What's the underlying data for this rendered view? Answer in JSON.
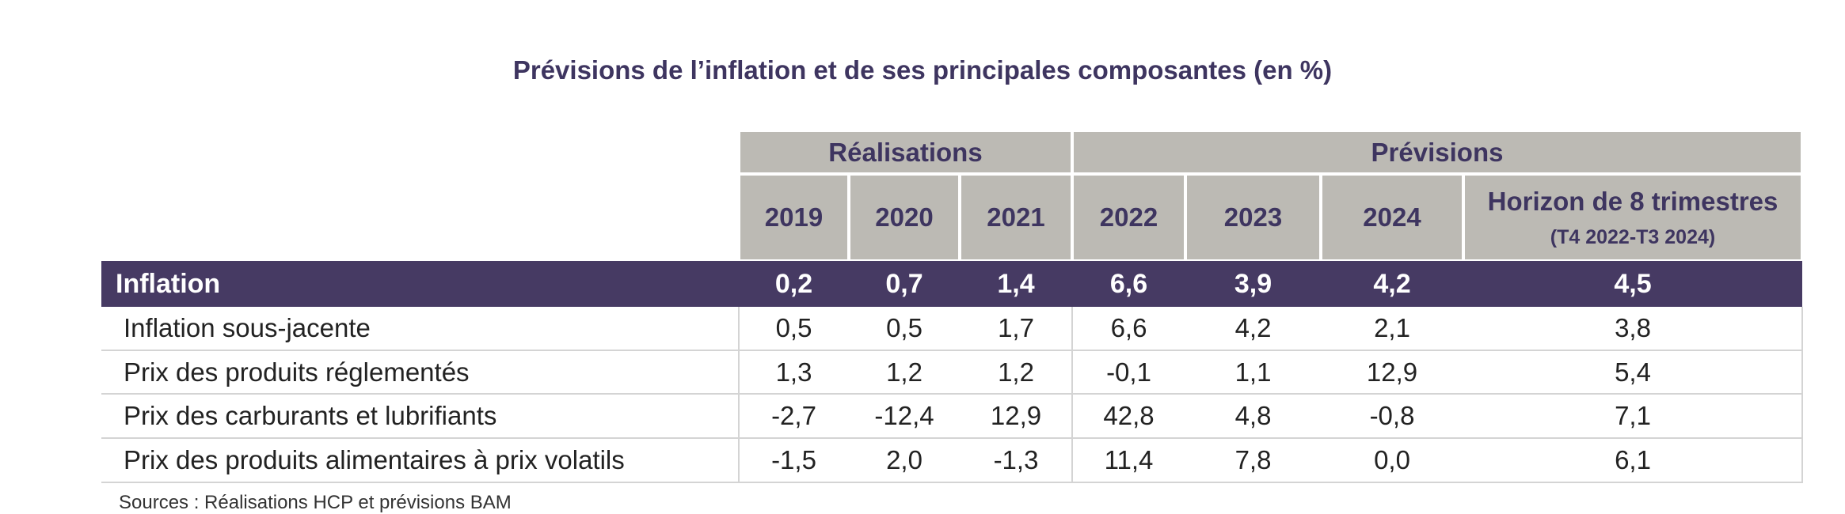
{
  "title": "Prévisions de l’inflation et de ses principales composantes (en %)",
  "table": {
    "groups": [
      "Réalisations",
      "Prévisions"
    ],
    "columns": [
      "2019",
      "2020",
      "2021",
      "2022",
      "2023",
      "2024",
      "Horizon de 8 trimestres"
    ],
    "horizon_note": "(T4 2022-T3 2024)",
    "rows": [
      [
        "Inflation",
        "0,2",
        "0,7",
        "1,4",
        "6,6",
        "3,9",
        "4,2",
        "4,5"
      ],
      [
        "Inflation sous-jacente",
        "0,5",
        "0,5",
        "1,7",
        "6,6",
        "4,2",
        "2,1",
        "3,8"
      ],
      [
        "Prix des produits réglementés",
        "1,3",
        "1,2",
        "1,2",
        "-0,1",
        "1,1",
        "12,9",
        "5,4"
      ],
      [
        "Prix des carburants et lubrifiants",
        "-2,7",
        "-12,4",
        "12,9",
        "42,8",
        "4,8",
        "-0,8",
        "7,1"
      ],
      [
        "Prix des produits alimentaires à prix volatils",
        "-1,5",
        "2,0",
        "-1,3",
        "11,4",
        "7,8",
        "0,0",
        "6,1"
      ]
    ]
  },
  "source": "Sources : Réalisations HCP et prévisions BAM"
}
